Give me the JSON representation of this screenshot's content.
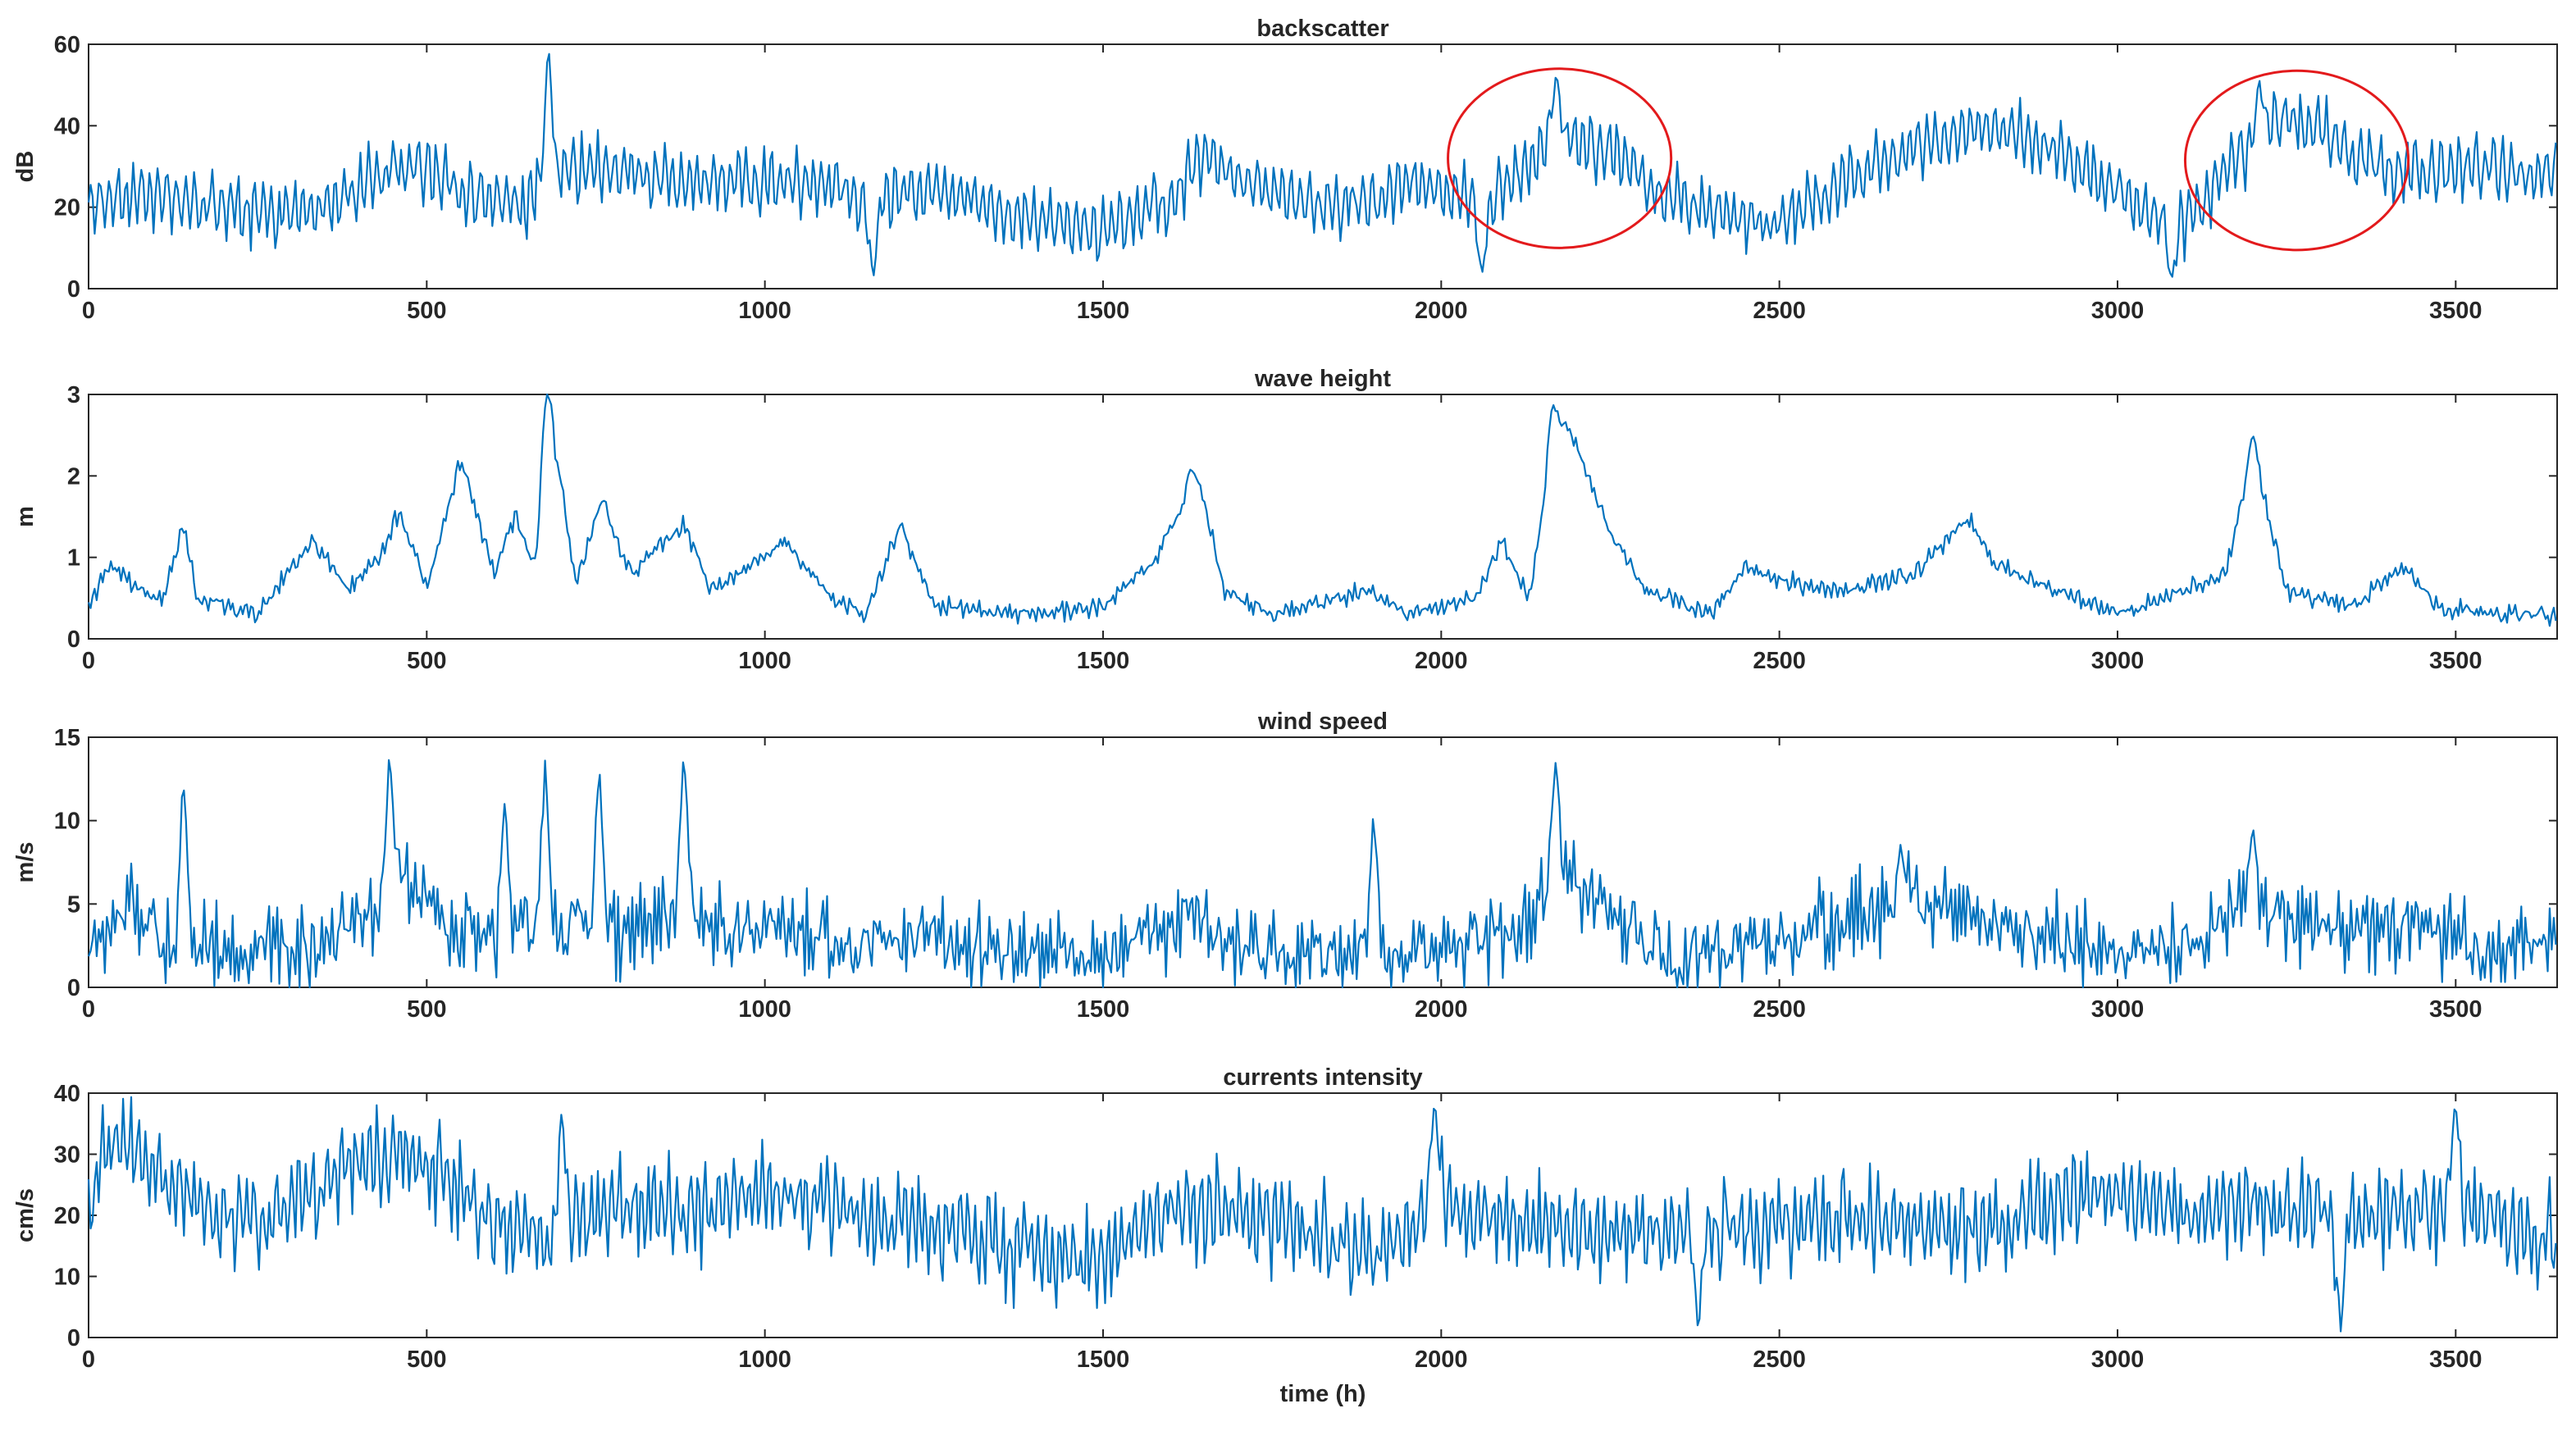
{
  "chart_data": [
    {
      "type": "line",
      "title": "backscatter",
      "xlabel": "",
      "ylabel": "dB",
      "xlim": [
        0,
        3650
      ],
      "ylim": [
        0,
        60
      ],
      "xticks": [
        0,
        500,
        1000,
        1500,
        2000,
        2500,
        3000,
        3500
      ],
      "yticks": [
        0,
        20,
        40,
        60
      ],
      "grid": false,
      "series_color": "#0072BD",
      "highlight_color": "#E31A1C",
      "trend": [
        [
          0,
          22
        ],
        [
          100,
          23
        ],
        [
          200,
          20
        ],
        [
          300,
          18
        ],
        [
          400,
          24
        ],
        [
          450,
          30
        ],
        [
          500,
          29
        ],
        [
          550,
          24
        ],
        [
          650,
          20
        ],
        [
          690,
          30
        ],
        [
          760,
          29
        ],
        [
          850,
          28
        ],
        [
          950,
          26
        ],
        [
          1050,
          27
        ],
        [
          1100,
          25
        ],
        [
          1150,
          22
        ],
        [
          1250,
          24
        ],
        [
          1400,
          17
        ],
        [
          1500,
          15
        ],
        [
          1600,
          22
        ],
        [
          1650,
          32
        ],
        [
          1700,
          27
        ],
        [
          1800,
          21
        ],
        [
          1900,
          22
        ],
        [
          1960,
          26
        ],
        [
          2030,
          23
        ],
        [
          2080,
          22
        ],
        [
          2120,
          30
        ],
        [
          2180,
          38
        ],
        [
          2260,
          33
        ],
        [
          2320,
          24
        ],
        [
          2420,
          18
        ],
        [
          2480,
          15
        ],
        [
          2600,
          26
        ],
        [
          2700,
          34
        ],
        [
          2800,
          40
        ],
        [
          2900,
          36
        ],
        [
          2980,
          26
        ],
        [
          3050,
          18
        ],
        [
          3100,
          16
        ],
        [
          3200,
          36
        ],
        [
          3250,
          43
        ],
        [
          3320,
          37
        ],
        [
          3400,
          28
        ],
        [
          3500,
          30
        ],
        [
          3650,
          28
        ]
      ],
      "spikes": [
        [
          680,
          60
        ],
        [
          2170,
          53
        ],
        [
          3210,
          51
        ],
        [
          1160,
          2
        ],
        [
          3080,
          1
        ],
        [
          2060,
          2
        ]
      ],
      "highlights": [
        {
          "x_center": 2175,
          "y_center": 32,
          "x_radius": 165,
          "y_radius": 22
        },
        {
          "x_center": 3265,
          "y_center": 31.5,
          "x_radius": 165,
          "y_radius": 22
        }
      ]
    },
    {
      "type": "line",
      "title": "wave height",
      "xlabel": "",
      "ylabel": "m",
      "xlim": [
        0,
        3650
      ],
      "ylim": [
        0,
        3
      ],
      "xticks": [
        0,
        500,
        1000,
        1500,
        2000,
        2500,
        3000,
        3500
      ],
      "yticks": [
        0,
        1,
        2,
        3
      ],
      "grid": false,
      "series_color": "#0072BD",
      "trend": [
        [
          0,
          0.4
        ],
        [
          30,
          0.9
        ],
        [
          80,
          0.6
        ],
        [
          110,
          0.45
        ],
        [
          140,
          1.4
        ],
        [
          160,
          0.5
        ],
        [
          250,
          0.3
        ],
        [
          330,
          1.2
        ],
        [
          380,
          0.6
        ],
        [
          430,
          1.0
        ],
        [
          460,
          1.6
        ],
        [
          500,
          0.6
        ],
        [
          550,
          2.2
        ],
        [
          600,
          0.8
        ],
        [
          630,
          1.5
        ],
        [
          660,
          0.9
        ],
        [
          680,
          2.9
        ],
        [
          720,
          0.7
        ],
        [
          760,
          1.7
        ],
        [
          800,
          0.8
        ],
        [
          880,
          1.4
        ],
        [
          920,
          0.6
        ],
        [
          980,
          0.9
        ],
        [
          1030,
          1.2
        ],
        [
          1100,
          0.5
        ],
        [
          1150,
          0.3
        ],
        [
          1200,
          1.4
        ],
        [
          1250,
          0.4
        ],
        [
          1400,
          0.3
        ],
        [
          1500,
          0.4
        ],
        [
          1580,
          1.0
        ],
        [
          1640,
          2.0
        ],
        [
          1680,
          0.6
        ],
        [
          1750,
          0.3
        ],
        [
          1900,
          0.6
        ],
        [
          1950,
          0.3
        ],
        [
          2050,
          0.5
        ],
        [
          2090,
          1.2
        ],
        [
          2130,
          0.5
        ],
        [
          2170,
          2.7
        ],
        [
          2200,
          2.4
        ],
        [
          2250,
          1.3
        ],
        [
          2300,
          0.6
        ],
        [
          2400,
          0.3
        ],
        [
          2450,
          0.9
        ],
        [
          2500,
          0.7
        ],
        [
          2600,
          0.6
        ],
        [
          2700,
          0.8
        ],
        [
          2780,
          1.5
        ],
        [
          2820,
          0.9
        ],
        [
          2880,
          0.7
        ],
        [
          3000,
          0.3
        ],
        [
          3100,
          0.6
        ],
        [
          3160,
          0.8
        ],
        [
          3200,
          2.3
        ],
        [
          3250,
          0.6
        ],
        [
          3350,
          0.4
        ],
        [
          3420,
          0.9
        ],
        [
          3480,
          0.35
        ],
        [
          3650,
          0.3
        ]
      ],
      "spikes": [
        [
          678,
          3.0
        ],
        [
          2165,
          2.9
        ],
        [
          1630,
          2.1
        ],
        [
          3200,
          2.5
        ]
      ]
    },
    {
      "type": "line",
      "title": "wind speed",
      "xlabel": "",
      "ylabel": "m/s",
      "xlim": [
        0,
        3650
      ],
      "ylim": [
        0,
        15
      ],
      "xticks": [
        0,
        500,
        1000,
        1500,
        2000,
        2500,
        3000,
        3500
      ],
      "yticks": [
        0,
        5,
        10,
        15
      ],
      "grid": false,
      "series_color": "#0072BD",
      "trend": [
        [
          0,
          2
        ],
        [
          60,
          5
        ],
        [
          100,
          3
        ],
        [
          200,
          2
        ],
        [
          350,
          2.5
        ],
        [
          420,
          4
        ],
        [
          460,
          7
        ],
        [
          520,
          4
        ],
        [
          600,
          3
        ],
        [
          700,
          4
        ],
        [
          800,
          3
        ],
        [
          880,
          5
        ],
        [
          950,
          3
        ],
        [
          1000,
          4
        ],
        [
          1100,
          2.5
        ],
        [
          1250,
          3
        ],
        [
          1400,
          2
        ],
        [
          1550,
          2.5
        ],
        [
          1630,
          4.5
        ],
        [
          1700,
          2.5
        ],
        [
          1850,
          2
        ],
        [
          1950,
          2
        ],
        [
          2100,
          3
        ],
        [
          2170,
          7
        ],
        [
          2250,
          4
        ],
        [
          2350,
          2
        ],
        [
          2450,
          2.5
        ],
        [
          2600,
          4
        ],
        [
          2700,
          5
        ],
        [
          2800,
          4
        ],
        [
          2900,
          3
        ],
        [
          3000,
          2
        ],
        [
          3100,
          2.5
        ],
        [
          3200,
          5
        ],
        [
          3300,
          3
        ],
        [
          3450,
          4
        ],
        [
          3550,
          2
        ],
        [
          3650,
          2.5
        ]
      ],
      "spikes": [
        [
          140,
          12.8
        ],
        [
          445,
          14.2
        ],
        [
          615,
          11
        ],
        [
          675,
          13.6
        ],
        [
          755,
          13.5
        ],
        [
          880,
          14.2
        ],
        [
          1900,
          10.7
        ],
        [
          2170,
          13.8
        ],
        [
          2680,
          8.7
        ],
        [
          3200,
          9.8
        ]
      ]
    },
    {
      "type": "line",
      "title": "currents intensity",
      "xlabel": "time (h)",
      "ylabel": "cm/s",
      "xlim": [
        0,
        3650
      ],
      "ylim": [
        0,
        40
      ],
      "xticks": [
        0,
        500,
        1000,
        1500,
        2000,
        2500,
        3000,
        3500
      ],
      "yticks": [
        0,
        10,
        20,
        30,
        40
      ],
      "grid": false,
      "series_color": "#0072BD",
      "trend": [
        [
          0,
          18
        ],
        [
          30,
          32
        ],
        [
          80,
          29
        ],
        [
          150,
          22
        ],
        [
          250,
          18
        ],
        [
          350,
          25
        ],
        [
          450,
          30
        ],
        [
          520,
          27
        ],
        [
          600,
          18
        ],
        [
          700,
          17
        ],
        [
          800,
          22
        ],
        [
          900,
          20
        ],
        [
          1000,
          24
        ],
        [
          1100,
          22
        ],
        [
          1200,
          18
        ],
        [
          1300,
          17
        ],
        [
          1400,
          14
        ],
        [
          1500,
          12
        ],
        [
          1550,
          18
        ],
        [
          1650,
          21
        ],
        [
          1800,
          18
        ],
        [
          1900,
          13
        ],
        [
          2000,
          22
        ],
        [
          2100,
          18
        ],
        [
          2200,
          17
        ],
        [
          2400,
          18
        ],
        [
          2500,
          18
        ],
        [
          2600,
          20
        ],
        [
          2700,
          18
        ],
        [
          2800,
          17
        ],
        [
          2900,
          22
        ],
        [
          3000,
          24
        ],
        [
          3100,
          20
        ],
        [
          3200,
          22
        ],
        [
          3300,
          20
        ],
        [
          3400,
          20
        ],
        [
          3500,
          22
        ],
        [
          3650,
          16
        ]
      ],
      "spikes": [
        [
          700,
          38
        ],
        [
          1990,
          39
        ],
        [
          2380,
          1
        ],
        [
          3330,
          1
        ],
        [
          3500,
          39
        ]
      ]
    }
  ]
}
